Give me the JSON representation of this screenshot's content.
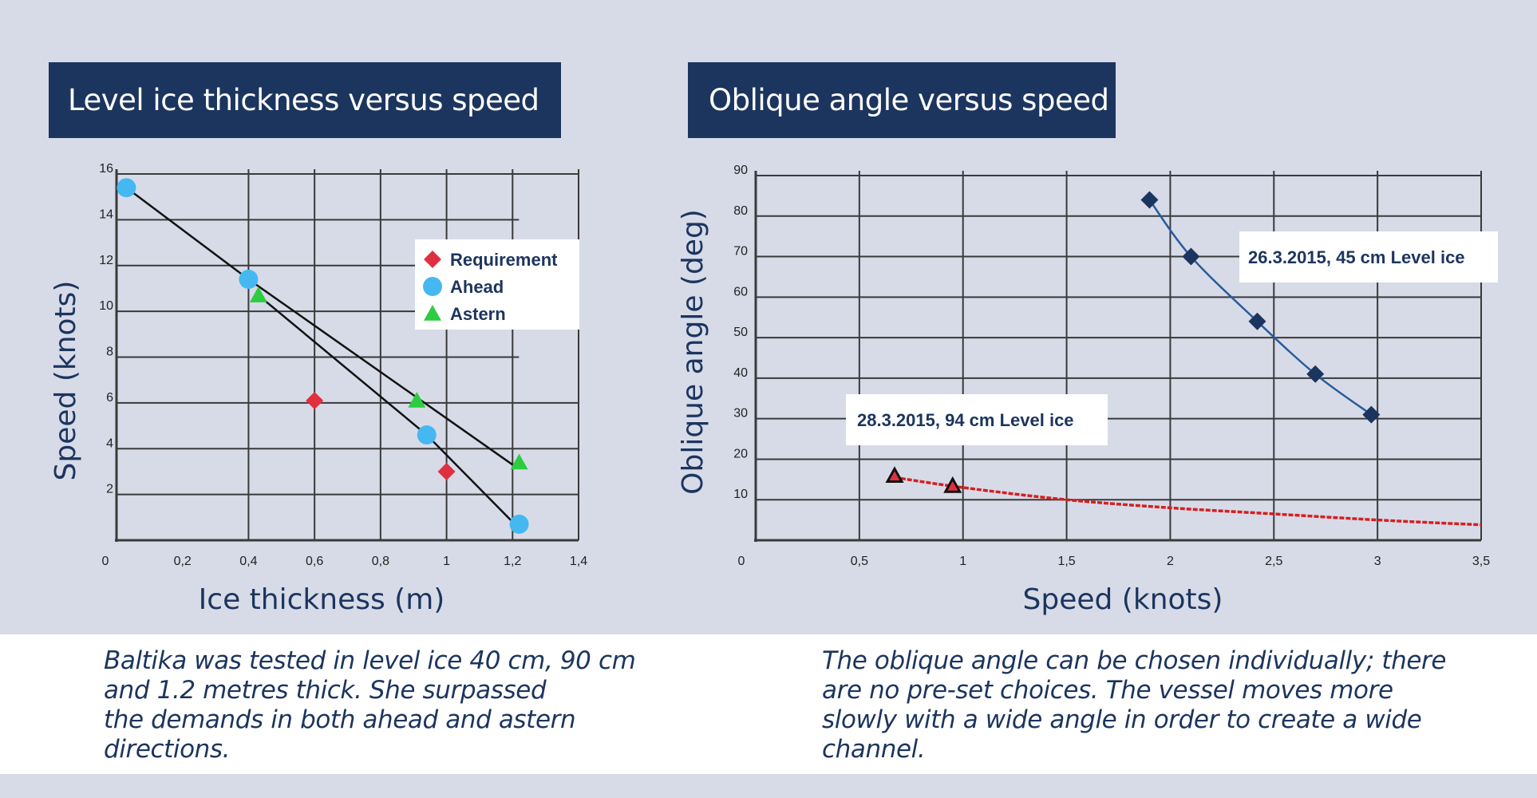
{
  "left_panel": {
    "title": "Level ice thickness versus speed",
    "caption": "Baltika was tested in level ice 40 cm, 90 cm\nand 1.2 metres thick. She surpassed\nthe demands in both ahead and astern\ndirections."
  },
  "right_panel": {
    "title": "Oblique angle versus speed",
    "caption": "The oblique angle can be chosen individually; there\nare no pre-set choices. The vessel moves more\nslowly with a wide angle in order to create a wide\nchannel."
  },
  "chart_data": [
    {
      "type": "scatter",
      "xlabel": "Ice thickness (m)",
      "ylabel": "Speed (knots)",
      "xlim": [
        0,
        1.4
      ],
      "ylim": [
        0,
        16
      ],
      "x_ticks": [
        "0",
        "0,2",
        "0,4",
        "0,6",
        "0,8",
        "1",
        "1,2",
        "1,4"
      ],
      "y_ticks": [
        "2",
        "4",
        "6",
        "8",
        "10",
        "12",
        "14",
        "16"
      ],
      "grid": true,
      "legend_position": "top-right",
      "series": [
        {
          "name": "Requirement",
          "marker": "diamond",
          "color": "#e03040",
          "points": [
            [
              0.6,
              6.1
            ],
            [
              1.0,
              3.0
            ]
          ]
        },
        {
          "name": "Ahead",
          "marker": "circle",
          "color": "#45b8f2",
          "points": [
            [
              0.03,
              15.4
            ],
            [
              0.4,
              11.4
            ],
            [
              0.94,
              4.6
            ],
            [
              1.22,
              0.7
            ]
          ]
        },
        {
          "name": "Astern",
          "marker": "triangle",
          "color": "#2ecc40",
          "points": [
            [
              0.43,
              10.7
            ],
            [
              0.91,
              6.1
            ],
            [
              1.22,
              3.4
            ]
          ]
        }
      ],
      "trend_lines": [
        {
          "color": "#111111",
          "points": [
            [
              0.03,
              15.4
            ],
            [
              0.4,
              11.4
            ],
            [
              1.2,
              3.3
            ]
          ]
        },
        {
          "color": "#111111",
          "points": [
            [
              0.43,
              10.7
            ],
            [
              0.94,
              4.6
            ],
            [
              1.2,
              0.8
            ]
          ]
        }
      ]
    },
    {
      "type": "scatter",
      "xlabel": "Speed (knots)",
      "ylabel": "Oblique angle (deg)",
      "xlim": [
        0,
        3.5
      ],
      "ylim": [
        0,
        90
      ],
      "x_ticks": [
        "0",
        "0,5",
        "1",
        "1,5",
        "2",
        "2,5",
        "3",
        "3,5"
      ],
      "y_ticks": [
        "10",
        "20",
        "30",
        "40",
        "50",
        "60",
        "70",
        "80",
        "90"
      ],
      "grid": true,
      "series": [
        {
          "annotation": "26.3.2015,  45 cm Level ice",
          "marker": "diamond",
          "color": "#1c355e",
          "line_color": "#2a5a9e",
          "points": [
            [
              1.9,
              84
            ],
            [
              2.1,
              70
            ],
            [
              2.42,
              54
            ],
            [
              2.7,
              41
            ],
            [
              2.97,
              31
            ]
          ]
        },
        {
          "annotation": "28.3.2015,  94 cm Level ice",
          "marker": "triangle",
          "color": "#e03040",
          "line_color": "#d42020",
          "points": [
            [
              0.67,
              15.5
            ],
            [
              0.95,
              13
            ]
          ],
          "trend": [
            [
              0.67,
              15.5
            ],
            [
              1.0,
              13
            ],
            [
              1.5,
              10
            ],
            [
              2.0,
              8
            ],
            [
              2.5,
              6.5
            ],
            [
              3.0,
              5
            ],
            [
              3.5,
              3.8
            ]
          ]
        }
      ]
    }
  ]
}
